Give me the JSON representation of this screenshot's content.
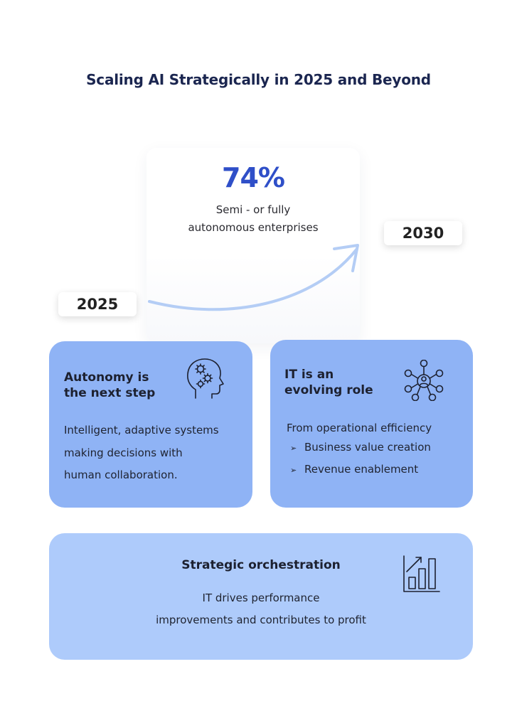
{
  "title": "Scaling AI Strategically in 2025 and Beyond",
  "highlight": {
    "value": "74%",
    "description_line1": "Semi - or fully",
    "description_line2": "autonomous enterprises"
  },
  "timeline": {
    "start_year": "2025",
    "end_year": "2030"
  },
  "cards": {
    "autonomy": {
      "title_line1": "Autonomy is",
      "title_line2": "the next step",
      "body_line1": "Intelligent, adaptive systems",
      "body_line2": "making decisions with",
      "body_line3": "human collaboration.",
      "icon": "head-gears-icon"
    },
    "it_role": {
      "title_line1": "IT is an",
      "title_line2": "evolving role",
      "intro": "From operational efficiency",
      "bullets": [
        "Business value creation",
        "Revenue enablement"
      ],
      "bullet_marker": "➢",
      "icon": "network-person-icon"
    },
    "strategic": {
      "title": "Strategic orchestration",
      "body_line1": "IT drives performance",
      "body_line2": "improvements and contributes to profit",
      "icon": "bar-chart-growth-icon"
    }
  },
  "colors": {
    "title": "#1b2650",
    "stat": "#2f4fc8",
    "card_primary": "#8fb3f5",
    "card_light": "#aecbfb",
    "arrow": "#b4cdf5"
  }
}
